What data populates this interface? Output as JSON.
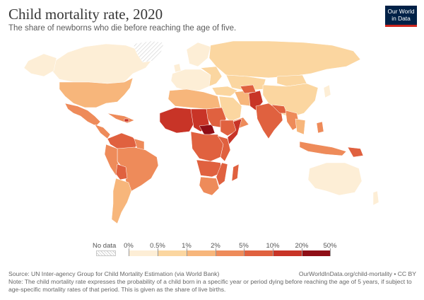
{
  "header": {
    "title": "Child mortality rate, 2020",
    "subtitle": "The share of newborns who die before reaching the age of five."
  },
  "logo": {
    "line1": "Our World",
    "line2": "in Data"
  },
  "legend": {
    "no_data_label": "No data",
    "bins": [
      {
        "label": "0%",
        "color": "#fdeed6"
      },
      {
        "label": "0.5%",
        "color": "#fbd6a0"
      },
      {
        "label": "1%",
        "color": "#f7b67b"
      },
      {
        "label": "2%",
        "color": "#ee8b5a"
      },
      {
        "label": "5%",
        "color": "#e0613f"
      },
      {
        "label": "10%",
        "color": "#c83427"
      },
      {
        "label": "20%",
        "color": "#8f0e16"
      }
    ],
    "end_label": "50%"
  },
  "footer": {
    "source": "Source: UN Inter-agency Group for Child Mortality Estimation (via World Bank)",
    "url": "OurWorldInData.org/child-mortality • CC BY",
    "note": "Note: The child mortality rate expresses the probability of a child born in a specific year or period dying before reaching the age of 5 years, if subject to age-specific mortality rates of that period. This is given as the share of live births."
  }
}
